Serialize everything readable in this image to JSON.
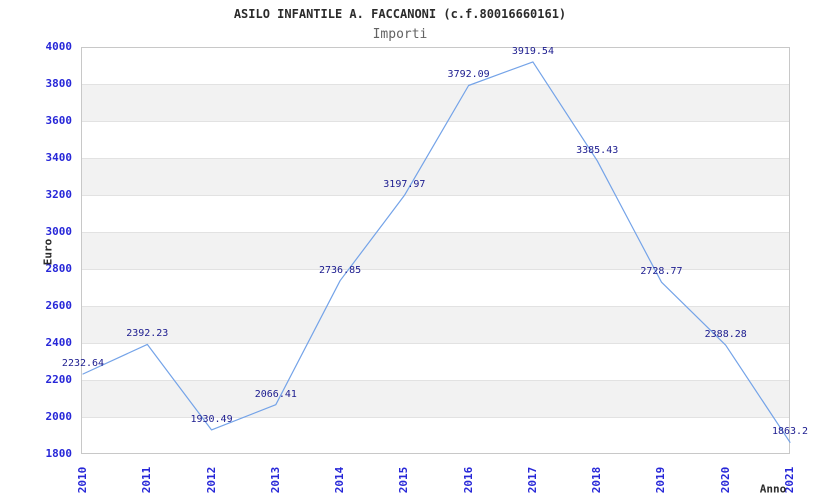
{
  "chart_data": {
    "type": "line",
    "title": "ASILO INFANTILE A. FACCANONI (c.f.80016660161)",
    "subtitle": "Importi",
    "xlabel": "Anno",
    "ylabel": "Euro",
    "x": [
      "2010",
      "2011",
      "2012",
      "2013",
      "2014",
      "2015",
      "2016",
      "2017",
      "2018",
      "2019",
      "2020",
      "2021"
    ],
    "series": [
      {
        "name": "Importi",
        "values": [
          2232.64,
          2392.23,
          1930.49,
          2066.41,
          2736.85,
          3197.97,
          3792.09,
          3919.54,
          3385.43,
          2728.77,
          2388.28,
          1863.2
        ],
        "point_labels": [
          "2232.64",
          "2392.23",
          "1930.49",
          "2066.41",
          "2736.85",
          "3197.97",
          "3792.09",
          "3919.54",
          "3385.43",
          "2728.77",
          "2388.28",
          "1863.2"
        ]
      }
    ],
    "ylim": [
      1800,
      4000
    ],
    "ytick_step": 200,
    "legend": "none",
    "grid": "alternating-horizontal-bands",
    "colors": {
      "line": "#74a3e8",
      "tick_label": "#2727d8",
      "point_label": "#1c1c8f",
      "band_fill": "#f2f2f2",
      "gridline": "#e2e2e2",
      "frame": "#c8c8c8",
      "title": "#2b2b2b",
      "subtitle": "#636363",
      "axis_title": "#2b2b2b",
      "background": "#ffffff"
    }
  }
}
